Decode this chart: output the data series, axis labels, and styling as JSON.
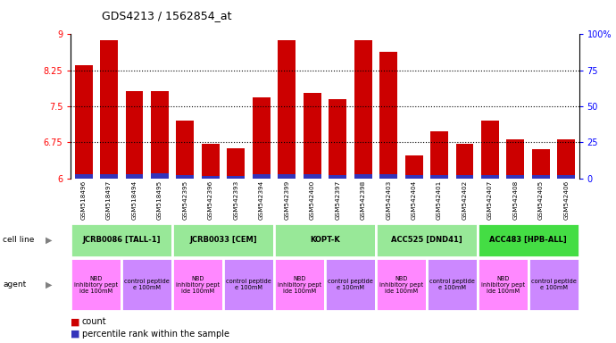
{
  "title": "GDS4213 / 1562854_at",
  "samples": [
    "GSM518496",
    "GSM518497",
    "GSM518494",
    "GSM518495",
    "GSM542395",
    "GSM542396",
    "GSM542393",
    "GSM542394",
    "GSM542399",
    "GSM542400",
    "GSM542397",
    "GSM542398",
    "GSM542403",
    "GSM542404",
    "GSM542401",
    "GSM542402",
    "GSM542407",
    "GSM542408",
    "GSM542405",
    "GSM542406"
  ],
  "red_values": [
    8.35,
    8.87,
    7.82,
    7.82,
    7.2,
    6.72,
    6.62,
    7.68,
    8.87,
    7.78,
    7.65,
    8.87,
    8.63,
    6.48,
    6.98,
    6.72,
    7.2,
    6.82,
    6.6,
    6.82
  ],
  "blue_values": [
    6.08,
    6.08,
    6.08,
    6.1,
    6.07,
    6.05,
    6.05,
    6.09,
    6.09,
    6.08,
    6.07,
    6.09,
    6.09,
    6.07,
    6.06,
    6.06,
    6.07,
    6.07,
    6.06,
    6.07
  ],
  "ylim_left": [
    6,
    9
  ],
  "ylim_right": [
    0,
    100
  ],
  "yticks_left": [
    6,
    6.75,
    7.5,
    8.25,
    9
  ],
  "yticks_right": [
    0,
    25,
    50,
    75,
    100
  ],
  "cell_lines": [
    {
      "label": "JCRB0086 [TALL-1]",
      "start": 0,
      "end": 4,
      "color": "#98E898"
    },
    {
      "label": "JCRB0033 [CEM]",
      "start": 4,
      "end": 8,
      "color": "#98E898"
    },
    {
      "label": "KOPT-K",
      "start": 8,
      "end": 12,
      "color": "#98E898"
    },
    {
      "label": "ACC525 [DND41]",
      "start": 12,
      "end": 16,
      "color": "#98E898"
    },
    {
      "label": "ACC483 [HPB-ALL]",
      "start": 16,
      "end": 20,
      "color": "#44DD44"
    }
  ],
  "agents": [
    {
      "label": "NBD\ninhibitory pept\nide 100mM",
      "start": 0,
      "end": 2,
      "color": "#FF88FF"
    },
    {
      "label": "control peptide\ne 100mM",
      "start": 2,
      "end": 4,
      "color": "#CC88FF"
    },
    {
      "label": "NBD\ninhibitory pept\nide 100mM",
      "start": 4,
      "end": 6,
      "color": "#FF88FF"
    },
    {
      "label": "control peptide\ne 100mM",
      "start": 6,
      "end": 8,
      "color": "#CC88FF"
    },
    {
      "label": "NBD\ninhibitory pept\nide 100mM",
      "start": 8,
      "end": 10,
      "color": "#FF88FF"
    },
    {
      "label": "control peptide\ne 100mM",
      "start": 10,
      "end": 12,
      "color": "#CC88FF"
    },
    {
      "label": "NBD\ninhibitory pept\nide 100mM",
      "start": 12,
      "end": 14,
      "color": "#FF88FF"
    },
    {
      "label": "control peptide\ne 100mM",
      "start": 14,
      "end": 16,
      "color": "#CC88FF"
    },
    {
      "label": "NBD\ninhibitory pept\nide 100mM",
      "start": 16,
      "end": 18,
      "color": "#FF88FF"
    },
    {
      "label": "control peptide\ne 100mM",
      "start": 18,
      "end": 20,
      "color": "#CC88FF"
    }
  ],
  "bar_color_red": "#CC0000",
  "bar_color_blue": "#3333BB",
  "tick_bg_color": "#DDDDDD",
  "cell_line_label": "cell line",
  "agent_label": "agent",
  "legend_count": "count",
  "legend_percentile": "percentile rank within the sample"
}
